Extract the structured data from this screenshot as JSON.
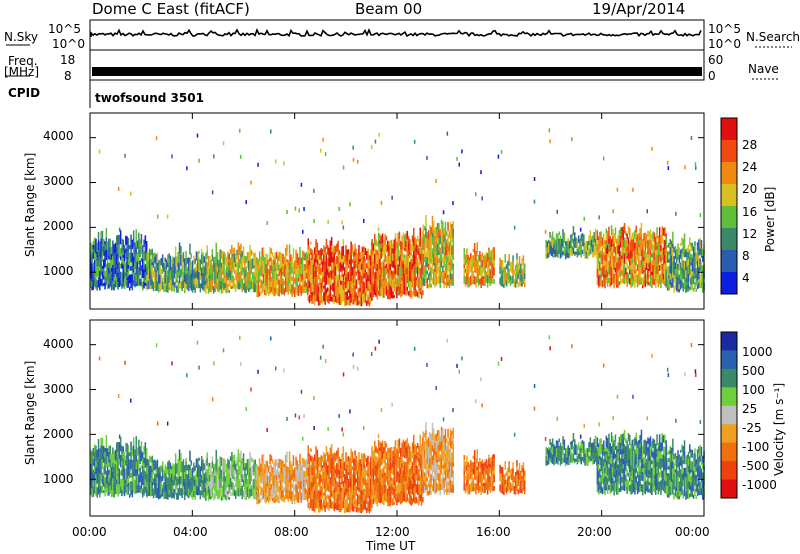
{
  "header": {
    "station": "Dome C East (fitACF)",
    "beam": "Beam 00",
    "date": "19/Apr/2014"
  },
  "strips": {
    "nsky_label": "N.Sky",
    "nsky_ticks": [
      "10^5",
      "10^0"
    ],
    "nsearch_label": "N.Search",
    "nsearch_ticks": [
      "10^5",
      "10^0"
    ],
    "freq_label_line1": "Freq.",
    "freq_label_line2": "[MHz]",
    "freq_ticks": [
      "18",
      "8"
    ],
    "nave_label": "Nave",
    "nave_ticks": [
      "60",
      "0"
    ],
    "cpid_label": "CPID",
    "cpid_value": "twofsound 3501"
  },
  "chart_data": [
    {
      "type": "heatmap",
      "panel": "power",
      "ylabel": "Slant Range [km]",
      "xlabel": "Time UT",
      "x_ticks": [
        "00:00",
        "04:00",
        "08:00",
        "12:00",
        "16:00",
        "20:00",
        "00:00"
      ],
      "xlim_hours": [
        0,
        24
      ],
      "y_ticks": [
        "1000",
        "2000",
        "3000",
        "4000"
      ],
      "ylim": [
        180,
        4550
      ],
      "colorbar_label": "Power [dB]",
      "colorbar_ticks": [
        "4",
        "8",
        "12",
        "16",
        "20",
        "24",
        "28"
      ],
      "colorbar_colors": [
        "#0a1fe0",
        "#2a5cb0",
        "#3a8a6a",
        "#5fbf3a",
        "#d8c020",
        "#f08a10",
        "#f04a10",
        "#e01010"
      ]
    },
    {
      "type": "heatmap",
      "panel": "velocity",
      "ylabel": "Slant Range [km]",
      "xlabel": "Time UT",
      "x_ticks": [
        "00:00",
        "04:00",
        "08:00",
        "12:00",
        "16:00",
        "20:00",
        "00:00"
      ],
      "xlim_hours": [
        0,
        24
      ],
      "y_ticks": [
        "1000",
        "2000",
        "3000",
        "4000"
      ],
      "ylim": [
        180,
        4550
      ],
      "colorbar_label": "Velocity [m s⁻¹]",
      "colorbar_ticks": [
        "1000",
        "500",
        "100",
        "25",
        "-25",
        "-100",
        "-500",
        "-1000"
      ],
      "colorbar_colors": [
        "#1a2aa0",
        "#2a60b0",
        "#3a8a6a",
        "#6fcf3a",
        "#c0c0c0",
        "#f0a020",
        "#f07010",
        "#f04010",
        "#e01010"
      ]
    }
  ],
  "echo_bands": [
    {
      "h0": 0.0,
      "h1": 2.2,
      "r0": 650,
      "r1": 1700,
      "pc": 10,
      "vc": 2
    },
    {
      "h0": 2.2,
      "h1": 4.5,
      "r0": 600,
      "r1": 1350,
      "pc": 14,
      "vc": 2
    },
    {
      "h0": 4.5,
      "h1": 6.5,
      "r0": 580,
      "r1": 1400,
      "pc": 18,
      "vc": 3
    },
    {
      "h0": 6.5,
      "h1": 8.5,
      "r0": 500,
      "r1": 1350,
      "pc": 22,
      "vc": 5
    },
    {
      "h0": 8.5,
      "h1": 11.0,
      "r0": 300,
      "r1": 1500,
      "pc": 27,
      "vc": 6
    },
    {
      "h0": 11.0,
      "h1": 13.0,
      "r0": 450,
      "r1": 1700,
      "pc": 25,
      "vc": 6
    },
    {
      "h0": 13.0,
      "h1": 14.2,
      "r0": 700,
      "r1": 2000,
      "pc": 20,
      "vc": 5
    },
    {
      "h0": 14.6,
      "h1": 15.8,
      "r0": 700,
      "r1": 1400,
      "pc": 22,
      "vc": 6
    },
    {
      "h0": 16.0,
      "h1": 17.0,
      "r0": 700,
      "r1": 1200,
      "pc": 18,
      "vc": 6
    },
    {
      "h0": 17.8,
      "h1": 19.8,
      "r0": 1350,
      "r1": 1750,
      "pc": 14,
      "vc": 2
    },
    {
      "h0": 19.8,
      "h1": 22.5,
      "r0": 700,
      "r1": 1850,
      "pc": 24,
      "vc": 2
    },
    {
      "h0": 22.5,
      "h1": 24.0,
      "r0": 600,
      "r1": 1600,
      "pc": 14,
      "vc": 2
    }
  ]
}
